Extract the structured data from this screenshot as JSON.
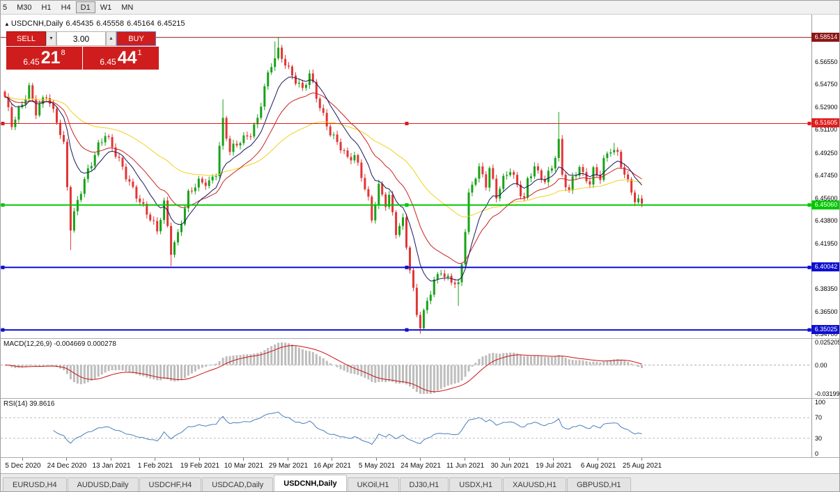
{
  "toolbar": {
    "timeframes": [
      "5",
      "M30",
      "H1",
      "H4",
      "D1",
      "W1",
      "MN"
    ],
    "active": "D1"
  },
  "chart_header": {
    "marker": "▲",
    "symbol": "USDCNH,Daily",
    "open": "6.45435",
    "high": "6.45558",
    "low": "6.45164",
    "close": "6.45215"
  },
  "trade_panel": {
    "sell_label": "SELL",
    "buy_label": "BUY",
    "volume": "3.00",
    "spinner_down": "▼",
    "spinner_up": "▲",
    "bid": {
      "prefix": "6.45",
      "big": "21",
      "sup": "8"
    },
    "ask": {
      "prefix": "6.45",
      "big": "44",
      "sup": "1"
    }
  },
  "price_axis": {
    "ticks": [
      "6.56550",
      "6.54750",
      "6.52900",
      "6.51100",
      "6.49250",
      "6.47450",
      "6.45600",
      "6.43800",
      "6.41950",
      "6.40150",
      "6.38350",
      "6.36500",
      "6.34700"
    ]
  },
  "levels": [
    {
      "label": "6.58514",
      "value": 6.58514,
      "color": "#8c1616",
      "width": 1,
      "handles": false
    },
    {
      "label": "6.51605",
      "value": 6.51605,
      "color": "#e01b1b",
      "width": 1,
      "handles": true
    },
    {
      "label": "6.45060",
      "value": 6.4506,
      "color": "#00c800",
      "width": 2,
      "handles": true
    },
    {
      "label": "6.40042",
      "value": 6.40042,
      "color": "#0f0fd0",
      "width": 2,
      "handles": true
    },
    {
      "label": "6.35025",
      "value": 6.35025,
      "color": "#0f0fd0",
      "width": 2,
      "handles": true
    }
  ],
  "chart_data": {
    "type": "candlestick",
    "symbol": "USDCNH",
    "period": "Daily",
    "bar_count": 185,
    "bar_step": 4.97,
    "price_top": 6.6035,
    "price_bottom": 6.3436,
    "colors": {
      "up": "#17a317",
      "down": "#e23535"
    },
    "mas": [
      {
        "name": "slow-ma",
        "period": 55,
        "color": "#f2cf1d",
        "width": 1
      },
      {
        "name": "medium-ma",
        "period": 21,
        "color": "#cc2020",
        "width": 1
      },
      {
        "name": "fast-ma",
        "period": 10,
        "color": "#16165e",
        "width": 1
      }
    ],
    "anchor_closes": [
      [
        0,
        6.536
      ],
      [
        2,
        6.515
      ],
      [
        4,
        6.528
      ],
      [
        7,
        6.545
      ],
      [
        9,
        6.524
      ],
      [
        12,
        6.538
      ],
      [
        15,
        6.52
      ],
      [
        17,
        6.5
      ],
      [
        19,
        6.432
      ],
      [
        21,
        6.452
      ],
      [
        24,
        6.478
      ],
      [
        27,
        6.5
      ],
      [
        29,
        6.508
      ],
      [
        32,
        6.49
      ],
      [
        35,
        6.474
      ],
      [
        38,
        6.46
      ],
      [
        41,
        6.444
      ],
      [
        44,
        6.428
      ],
      [
        46,
        6.452
      ],
      [
        48,
        6.415
      ],
      [
        50,
        6.428
      ],
      [
        53,
        6.458
      ],
      [
        56,
        6.468
      ],
      [
        59,
        6.47
      ],
      [
        61,
        6.478
      ],
      [
        63,
        6.518
      ],
      [
        65,
        6.492
      ],
      [
        68,
        6.502
      ],
      [
        71,
        6.51
      ],
      [
        73,
        6.52
      ],
      [
        75,
        6.544
      ],
      [
        77,
        6.562
      ],
      [
        79,
        6.574
      ],
      [
        81,
        6.566
      ],
      [
        83,
        6.556
      ],
      [
        86,
        6.542
      ],
      [
        88,
        6.554
      ],
      [
        91,
        6.53
      ],
      [
        94,
        6.51
      ],
      [
        97,
        6.496
      ],
      [
        99,
        6.486
      ],
      [
        101,
        6.49
      ],
      [
        103,
        6.476
      ],
      [
        105,
        6.456
      ],
      [
        106,
        6.44
      ],
      [
        108,
        6.464
      ],
      [
        110,
        6.45
      ],
      [
        111,
        6.456
      ],
      [
        113,
        6.43
      ],
      [
        115,
        6.44
      ],
      [
        117,
        6.4
      ],
      [
        119,
        6.362
      ],
      [
        120,
        6.352
      ],
      [
        122,
        6.372
      ],
      [
        124,
        6.39
      ],
      [
        126,
        6.4
      ],
      [
        127,
        6.394
      ],
      [
        129,
        6.39
      ],
      [
        131,
        6.384
      ],
      [
        132,
        6.402
      ],
      [
        133,
        6.43
      ],
      [
        134,
        6.458
      ],
      [
        136,
        6.476
      ],
      [
        137,
        6.482
      ],
      [
        139,
        6.468
      ],
      [
        140,
        6.48
      ],
      [
        142,
        6.456
      ],
      [
        144,
        6.47
      ],
      [
        146,
        6.48
      ],
      [
        148,
        6.468
      ],
      [
        150,
        6.456
      ],
      [
        151,
        6.47
      ],
      [
        153,
        6.48
      ],
      [
        154,
        6.474
      ],
      [
        156,
        6.47
      ],
      [
        158,
        6.482
      ],
      [
        160,
        6.503
      ],
      [
        161,
        6.475
      ],
      [
        163,
        6.46
      ],
      [
        164,
        6.47
      ],
      [
        166,
        6.48
      ],
      [
        167,
        6.474
      ],
      [
        169,
        6.47
      ],
      [
        170,
        6.48
      ],
      [
        172,
        6.474
      ],
      [
        173,
        6.486
      ],
      [
        175,
        6.494
      ],
      [
        177,
        6.49
      ],
      [
        179,
        6.476
      ],
      [
        181,
        6.464
      ],
      [
        182,
        6.456
      ],
      [
        184,
        6.452
      ]
    ],
    "wick_overrides": [
      [
        19,
        "low",
        6.4145
      ],
      [
        48,
        "low",
        6.4015
      ],
      [
        63,
        "high",
        6.5355
      ],
      [
        78,
        "high",
        6.582
      ],
      [
        79,
        "high",
        6.5851
      ],
      [
        120,
        "low",
        6.3472
      ],
      [
        131,
        "low",
        6.3695
      ],
      [
        160,
        "high",
        6.5253
      ],
      [
        176,
        "high",
        6.5005
      ]
    ]
  },
  "macd": {
    "label": "MACD(12,26,9) -0.004669 0.000278",
    "fast": 12,
    "slow": 26,
    "signal": 9,
    "axis": [
      {
        "label": "0.025205",
        "value": 0.025205
      },
      {
        "label": "0.00",
        "value": 0
      },
      {
        "label": "-0.03199",
        "value": -0.03199
      }
    ],
    "range": [
      -0.03199,
      0.025205
    ],
    "hist_color": "#bdbdbd",
    "signal_color": "#cc1111"
  },
  "rsi": {
    "label": "RSI(14) 39.8616",
    "period": 14,
    "value": 39.8616,
    "axis": [
      {
        "label": "100",
        "value": 100
      },
      {
        "label": "70",
        "value": 70
      },
      {
        "label": "30",
        "value": 30
      },
      {
        "label": "0",
        "value": 0
      }
    ],
    "guides": [
      70,
      30
    ],
    "line_color": "#4a7ebb"
  },
  "date_axis": {
    "labels": [
      "5 Dec 2020",
      "24 Dec 2020",
      "13 Jan 2021",
      "1 Feb 2021",
      "19 Feb 2021",
      "10 Mar 2021",
      "29 Mar 2021",
      "16 Apr 2021",
      "5 May 2021",
      "24 May 2021",
      "11 Jun 2021",
      "30 Jun 2021",
      "19 Jul 2021",
      "6 Aug 2021",
      "25 Aug 2021"
    ]
  },
  "tabs": {
    "items": [
      "EURUSD,H4",
      "AUDUSD,Daily",
      "USDCHF,H4",
      "USDCAD,Daily",
      "USDCNH,Daily",
      "UKOil,H1",
      "DJ30,H1",
      "USDX,H1",
      "XAUUSD,H1",
      "GBPUSD,H1"
    ],
    "active_index": 4
  }
}
